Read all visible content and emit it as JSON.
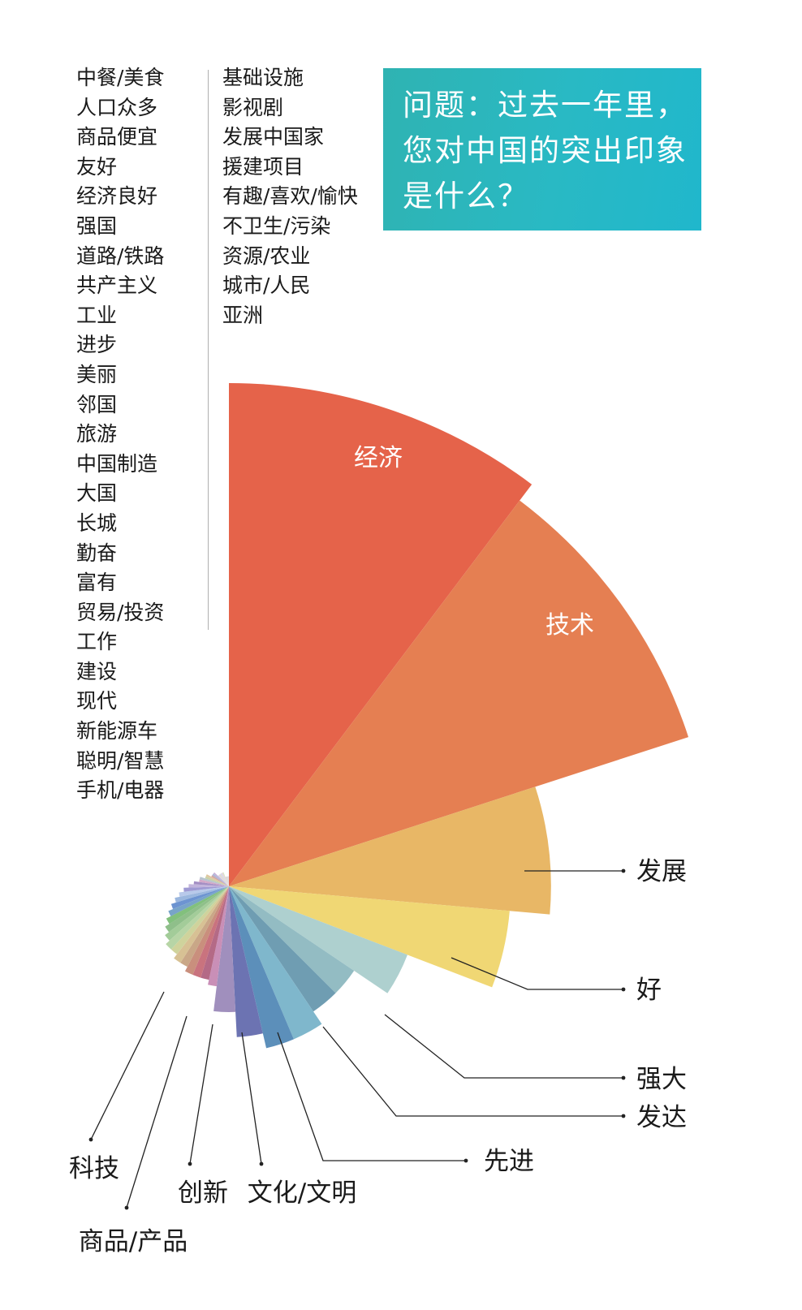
{
  "title": "问题：过去一年里，您对中国的突出印象是什么？",
  "categories_col1": [
    "中餐/美食",
    "人口众多",
    "商品便宜",
    "友好",
    "经济良好",
    "强国",
    "道路/铁路",
    "共产主义",
    "工业",
    "进步",
    "美丽",
    "邻国",
    "旅游",
    "中国制造",
    "大国",
    "长城",
    "勤奋",
    "富有",
    "贸易/投资",
    "工作",
    "建设",
    "现代",
    "新能源车",
    "聪明/智慧",
    "手机/电器"
  ],
  "categories_col2": [
    "基础设施",
    "影视剧",
    "发展中国家",
    "援建项目",
    "有趣/喜欢/愉快",
    "不卫生/污染",
    "资源/农业",
    "城市/人民",
    "亚洲"
  ],
  "chart_data": {
    "type": "pie",
    "subtype": "polar-area",
    "title": "问题：过去一年里，您对中国的突出印象是什么？",
    "start_direction": "up",
    "direction": "clockwise",
    "slices": [
      {
        "label": "经济",
        "relative_value": 1.0,
        "color": "#e5634a",
        "label_inside": true
      },
      {
        "label": "技术",
        "relative_value": 0.96,
        "color": "#e57f52",
        "label_inside": true
      },
      {
        "label": "发展",
        "relative_value": 0.64,
        "color": "#e8b766"
      },
      {
        "label": "好",
        "relative_value": 0.56,
        "color": "#f0d774"
      },
      {
        "label": "强大",
        "relative_value": 0.38,
        "color": "#aed0cf"
      },
      {
        "label": "发达",
        "relative_value": 0.3,
        "color": "#93bcc3"
      },
      {
        "label": "先进",
        "relative_value": 0.3,
        "color": "#6f9db2"
      },
      {
        "label": "文化/文明",
        "relative_value": 0.33,
        "color": "#7fb7cc"
      },
      {
        "label": "创新",
        "relative_value": 0.33,
        "color": "#5c8fba"
      },
      {
        "label": "商品/产品",
        "relative_value": 0.3,
        "color": "#6c73b2"
      },
      {
        "label": "科技",
        "relative_value": 0.25,
        "color": "#a08fbd"
      },
      {
        "label": "中餐/美食",
        "relative_value": 0.2,
        "color": "#c98fb7"
      },
      {
        "label": "人口众多",
        "relative_value": 0.19,
        "color": "#b46a86"
      },
      {
        "label": "商品便宜",
        "relative_value": 0.19,
        "color": "#c9737e"
      },
      {
        "label": "友好",
        "relative_value": 0.19,
        "color": "#c98f7d"
      },
      {
        "label": "经济良好",
        "relative_value": 0.18,
        "color": "#c9a787"
      },
      {
        "label": "强国",
        "relative_value": 0.18,
        "color": "#d7c194"
      },
      {
        "label": "道路/铁路",
        "relative_value": 0.17,
        "color": "#cfd39c"
      },
      {
        "label": "共产主义",
        "relative_value": 0.17,
        "color": "#b7d5a6"
      },
      {
        "label": "工业",
        "relative_value": 0.16,
        "color": "#a3cc99"
      },
      {
        "label": "进步",
        "relative_value": 0.15,
        "color": "#8fbf8a"
      },
      {
        "label": "美丽",
        "relative_value": 0.14,
        "color": "#82c07d"
      },
      {
        "label": "邻国",
        "relative_value": 0.13,
        "color": "#78a4c9"
      },
      {
        "label": "旅游",
        "relative_value": 0.12,
        "color": "#6d94d1"
      },
      {
        "label": "中国制造",
        "relative_value": 0.11,
        "color": "#9bb7de"
      },
      {
        "label": "大国",
        "relative_value": 0.1,
        "color": "#b8c9ea"
      },
      {
        "label": "长城",
        "relative_value": 0.09,
        "color": "#9f9ad3"
      },
      {
        "label": "勤奋",
        "relative_value": 0.08,
        "color": "#c2b4dc"
      },
      {
        "label": "富有",
        "relative_value": 0.07,
        "color": "#a48fc4"
      },
      {
        "label": "贸易/投资",
        "relative_value": 0.06,
        "color": "#d3a8c9"
      },
      {
        "label": "工作",
        "relative_value": 0.06,
        "color": "#b7c4cf"
      },
      {
        "label": "建设",
        "relative_value": 0.05,
        "color": "#c8d1a8"
      },
      {
        "label": "现代",
        "relative_value": 0.05,
        "color": "#e0c7a0"
      },
      {
        "label": "新能源车",
        "relative_value": 0.04,
        "color": "#d1a4a4"
      },
      {
        "label": "聪明/智慧",
        "relative_value": 0.04,
        "color": "#aab7d6"
      },
      {
        "label": "手机/电器",
        "relative_value": 0.04,
        "color": "#c3b2d8"
      },
      {
        "label": "基础设施",
        "relative_value": 0.03,
        "color": "#d7d7e8"
      },
      {
        "label": "影视剧",
        "relative_value": 0.03,
        "color": "#e6d6c8"
      },
      {
        "label": "发展中国家",
        "relative_value": 0.03,
        "color": "#cfdde8"
      },
      {
        "label": "援建项目",
        "relative_value": 0.03,
        "color": "#e6cfe1"
      },
      {
        "label": "有趣/喜欢/愉快",
        "relative_value": 0.03,
        "color": "#d9e3c9"
      },
      {
        "label": "不卫生/污染",
        "relative_value": 0.02,
        "color": "#e1d1d1"
      },
      {
        "label": "资源/农业",
        "relative_value": 0.02,
        "color": "#cfd6e3"
      },
      {
        "label": "城市/人民",
        "relative_value": 0.02,
        "color": "#e3dcc9"
      },
      {
        "label": "亚洲",
        "relative_value": 0.02,
        "color": "#dcd3e6"
      }
    ],
    "callouts": [
      "发展",
      "好",
      "强大",
      "发达",
      "先进",
      "文化/文明",
      "创新",
      "商品/产品",
      "科技"
    ]
  }
}
